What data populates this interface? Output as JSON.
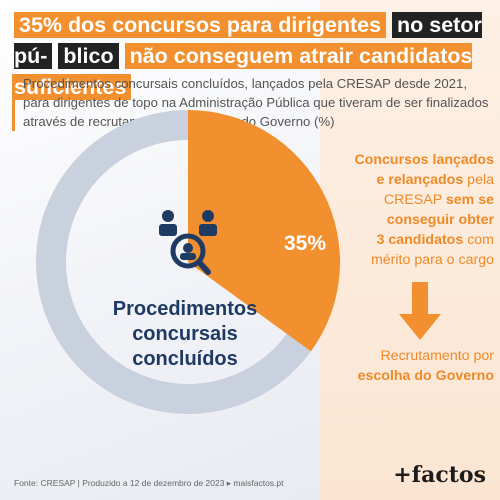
{
  "header": {
    "title_part1": "35% dos concursos para dirigentes",
    "title_part2": "no setor pú-",
    "title_part3": "blico",
    "title_part4": "não conseguem atrair candidatos suficientes",
    "subtitle": "Procedimentos concursais concluídos, lançados pela CRESAP desde 2021, para dirigentes de topo na Administração Pública que tiveram de ser finalizados através de recrutamento por escolha do Governo (%)"
  },
  "chart_data": {
    "type": "pie",
    "title": "Procedimentos concursais concluídos",
    "slices": [
      {
        "label": "35%",
        "value": 35,
        "color": "#f2902f"
      },
      {
        "label": "",
        "value": 65,
        "color": "#c9d0de"
      }
    ],
    "center_label": "Procedimentos concursais concluídos"
  },
  "annotations": {
    "top_1": "Concursos lançados",
    "top_2": "e relançados",
    "top_3": " pela",
    "top_4": "CRESAP ",
    "top_5": "sem se conseguir obter",
    "top_6": "3 candidatos",
    "top_7": " com mérito para o cargo",
    "bottom_1": "Recrutamento por",
    "bottom_2": "escolha do Governo"
  },
  "footer": {
    "source": "Fonte: CRESAP | Produzido a 12 de dezembro de 2023 ▸ maisfactos.pt",
    "logo": "+factos"
  },
  "colors": {
    "accent": "#f2902f",
    "ring": "#c9d0de",
    "dark_blue": "#1f3a63"
  }
}
